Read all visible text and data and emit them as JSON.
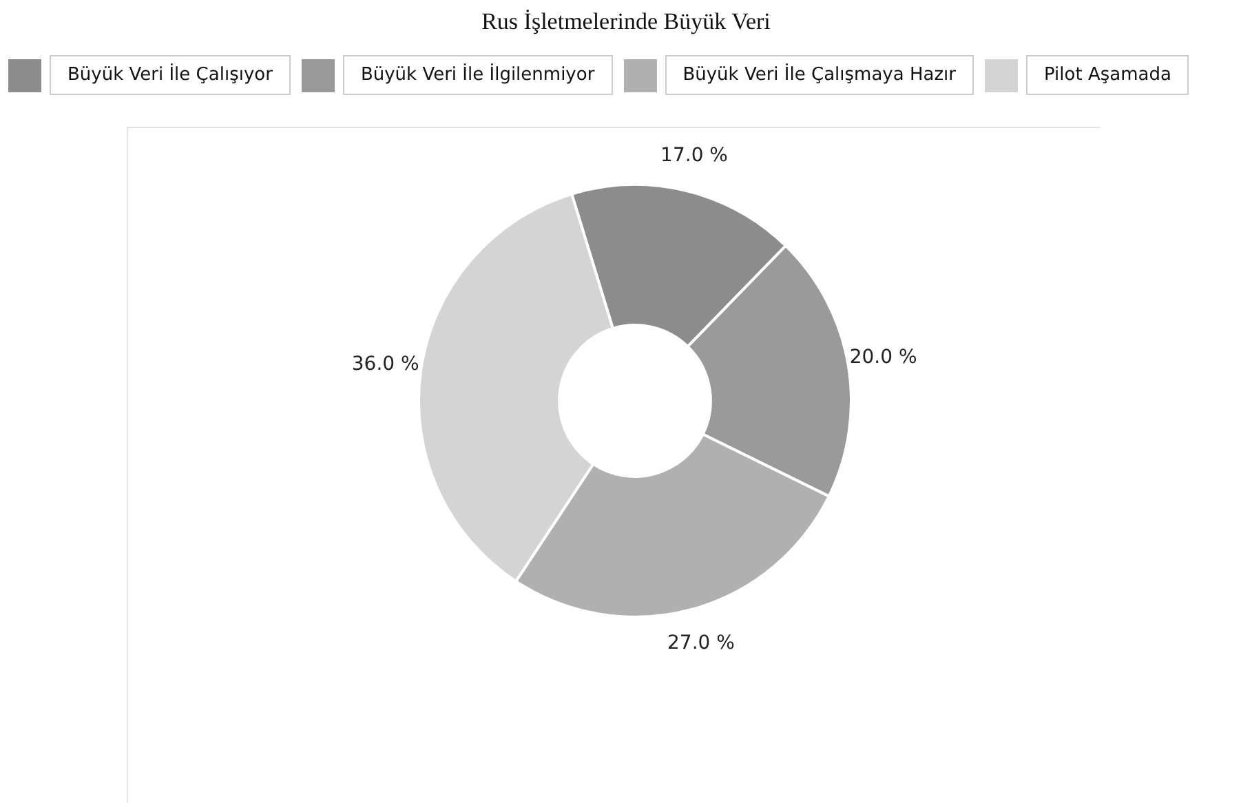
{
  "chart_data": {
    "type": "donut",
    "title": "Rus İşletmelerinde Büyük Veri",
    "categories": [
      "Büyük Veri İle Çalışıyor",
      "Büyük Veri İle İlgilenmiyor",
      "Büyük Veri İle Çalışmaya Hazır",
      "Pilot Aşamada"
    ],
    "values": [
      17,
      20,
      27,
      36
    ],
    "colors": [
      "#8c8c8c",
      "#9a9a9a",
      "#b0b0b0",
      "#d4d4d4"
    ],
    "value_labels": [
      "17.0 %",
      "20.0 %",
      "27.0 %",
      "36.0 %"
    ],
    "legend": "top"
  }
}
